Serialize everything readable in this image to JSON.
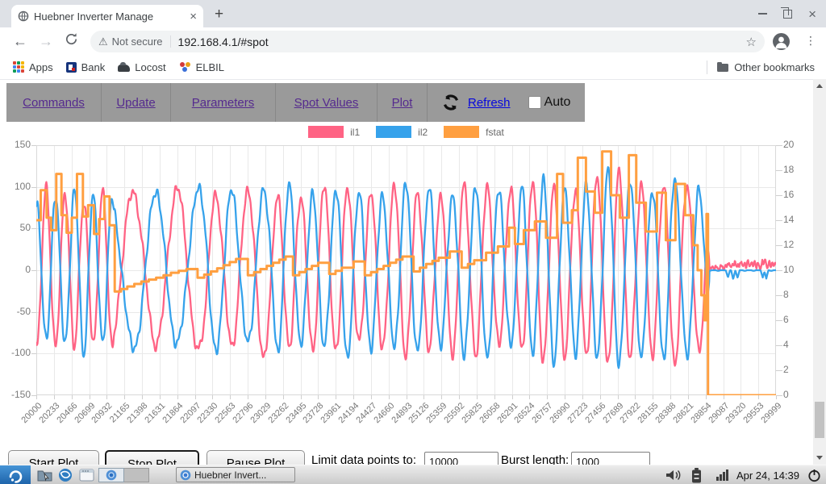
{
  "browser": {
    "tab": {
      "title": "Huebner Inverter Manage",
      "close_glyph": "×",
      "new_tab_glyph": "+"
    },
    "toolbar": {
      "security_label": "Not secure",
      "url": "192.168.4.1/#spot",
      "warn_glyph": "⚠",
      "star_glyph": "☆",
      "menu_glyph": "⋮"
    },
    "bookmarks": {
      "items": [
        {
          "label": "Apps",
          "icon": "apps-grid-icon"
        },
        {
          "label": "Bank",
          "icon": "bank-icon"
        },
        {
          "label": "Locost",
          "icon": "locost-icon"
        },
        {
          "label": "ELBIL",
          "icon": "elbil-icon"
        }
      ],
      "other_label": "Other bookmarks"
    }
  },
  "nav": {
    "links": [
      "Commands",
      "Update",
      "Parameters",
      "Spot Values",
      "Plot"
    ],
    "refresh_label": "Refresh",
    "auto_label": "Auto"
  },
  "chart_data": {
    "type": "line",
    "series_legend": [
      {
        "name": "il1",
        "color": "#FF6384"
      },
      {
        "name": "il2",
        "color": "#36A2EB"
      },
      {
        "name": "fstat",
        "color": "#FF9F40"
      }
    ],
    "x_range": [
      20000,
      29999
    ],
    "x_labels": [
      "20000",
      "20233",
      "20466",
      "20699",
      "20932",
      "21165",
      "21398",
      "21631",
      "21864",
      "22097",
      "22330",
      "22563",
      "22796",
      "23029",
      "23262",
      "23495",
      "23728",
      "23961",
      "24194",
      "24427",
      "24660",
      "24893",
      "25126",
      "25359",
      "25592",
      "25825",
      "26058",
      "26291",
      "26524",
      "26757",
      "26990",
      "27223",
      "27456",
      "27689",
      "27922",
      "28155",
      "28388",
      "28621",
      "28854",
      "29087",
      "29320",
      "29553",
      "29999"
    ],
    "left_axis": {
      "range": [
        -150,
        150
      ],
      "ticks": [
        150,
        100,
        50,
        0,
        -50,
        -100,
        -150
      ]
    },
    "right_axis": {
      "range": [
        0,
        20
      ],
      "ticks": [
        20,
        18,
        16,
        14,
        12,
        10,
        8,
        6,
        4,
        2,
        0
      ]
    },
    "fstat_steps": [
      [
        20000,
        14.0
      ],
      [
        20060,
        16.4
      ],
      [
        20140,
        14.2
      ],
      [
        20200,
        13.2
      ],
      [
        20270,
        17.7
      ],
      [
        20340,
        14.4
      ],
      [
        20410,
        13.0
      ],
      [
        20480,
        14.2
      ],
      [
        20550,
        17.7
      ],
      [
        20630,
        14.3
      ],
      [
        20700,
        15.2
      ],
      [
        20780,
        12.9
      ],
      [
        20850,
        14.1
      ],
      [
        20920,
        15.9
      ],
      [
        20990,
        13.6
      ],
      [
        21060,
        8.3
      ],
      [
        21230,
        8.7
      ],
      [
        21420,
        9.1
      ],
      [
        21620,
        9.4
      ],
      [
        21820,
        9.8
      ],
      [
        22030,
        10.1
      ],
      [
        22180,
        9.4
      ],
      [
        22360,
        9.9
      ],
      [
        22530,
        10.4
      ],
      [
        22700,
        10.9
      ],
      [
        22860,
        9.6
      ],
      [
        23030,
        10.1
      ],
      [
        23200,
        10.6
      ],
      [
        23370,
        11.1
      ],
      [
        23470,
        9.6
      ],
      [
        23640,
        10.1
      ],
      [
        23810,
        10.6
      ],
      [
        23960,
        9.7
      ],
      [
        24130,
        10.2
      ],
      [
        24290,
        10.7
      ],
      [
        24440,
        9.6
      ],
      [
        24610,
        10.1
      ],
      [
        24780,
        10.6
      ],
      [
        24950,
        11.1
      ],
      [
        25100,
        9.9
      ],
      [
        25270,
        10.5
      ],
      [
        25440,
        11.0
      ],
      [
        25590,
        11.5
      ],
      [
        25750,
        10.2
      ],
      [
        25920,
        10.8
      ],
      [
        26080,
        11.4
      ],
      [
        26240,
        11.9
      ],
      [
        26390,
        13.4
      ],
      [
        26470,
        12.1
      ],
      [
        26590,
        13.2
      ],
      [
        26740,
        13.9
      ],
      [
        26890,
        12.6
      ],
      [
        27040,
        17.7
      ],
      [
        27120,
        13.8
      ],
      [
        27240,
        14.8
      ],
      [
        27320,
        19.0
      ],
      [
        27430,
        16.3
      ],
      [
        27550,
        14.6
      ],
      [
        27650,
        19.5
      ],
      [
        27770,
        16.0
      ],
      [
        27890,
        14.2
      ],
      [
        28010,
        19.2
      ],
      [
        28110,
        15.4
      ],
      [
        28240,
        13.1
      ],
      [
        28390,
        16.2
      ],
      [
        28510,
        12.4
      ],
      [
        28640,
        16.9
      ],
      [
        28770,
        14.4
      ],
      [
        28880,
        12.0
      ],
      [
        28940,
        10.0
      ],
      [
        28990,
        8.0
      ],
      [
        29030,
        6.0
      ],
      [
        29060,
        14.5
      ],
      [
        29080,
        0.0
      ],
      [
        29999,
        0.0
      ]
    ],
    "current_period_segments": [
      [
        20000,
        255
      ],
      [
        21050,
        640
      ],
      [
        21500,
        570
      ],
      [
        22300,
        430
      ],
      [
        23200,
        315
      ],
      [
        26500,
        290
      ],
      [
        27600,
        300
      ],
      [
        28600,
        330
      ]
    ],
    "current_amplitude_envelope": [
      [
        20000,
        88
      ],
      [
        20500,
        92
      ],
      [
        21050,
        90
      ],
      [
        21500,
        93
      ],
      [
        23000,
        95
      ],
      [
        25000,
        96
      ],
      [
        26500,
        99
      ],
      [
        27200,
        104
      ],
      [
        27800,
        110
      ],
      [
        28200,
        108
      ],
      [
        28600,
        103
      ],
      [
        28950,
        97
      ],
      [
        29050,
        82
      ],
      [
        29100,
        12
      ]
    ],
    "il2_phase_offset_deg": 180,
    "tail": {
      "start": 29100,
      "il1_spikes": [
        [
          29140,
          5
        ],
        [
          29200,
          4
        ],
        [
          29260,
          5
        ],
        [
          29320,
          7
        ],
        [
          29365,
          9
        ],
        [
          29405,
          6
        ],
        [
          29445,
          10
        ],
        [
          29485,
          7
        ],
        [
          29530,
          11
        ],
        [
          29570,
          8
        ],
        [
          29620,
          13
        ],
        [
          29665,
          9
        ],
        [
          29710,
          12
        ],
        [
          29760,
          8
        ],
        [
          29815,
          11
        ],
        [
          29855,
          13
        ],
        [
          29905,
          9
        ],
        [
          29950,
          10
        ],
        [
          29990,
          8
        ]
      ],
      "il2_spikes": [
        [
          29350,
          -8
        ],
        [
          29420,
          -11
        ],
        [
          29480,
          -9
        ],
        [
          29820,
          -8
        ],
        [
          29868,
          -10
        ]
      ]
    },
    "grid": true,
    "legend_position": "top"
  },
  "controls": {
    "buttons": [
      "Start Plot",
      "Stop Plot",
      "Pause Plot"
    ],
    "limit_label": "Limit data points to:",
    "limit_value": "10000",
    "burst_label": "Burst length:",
    "burst_value": "1000"
  },
  "taskbar": {
    "task_label": "Huebner Invert...",
    "clock": "Apr 24, 14:39"
  }
}
